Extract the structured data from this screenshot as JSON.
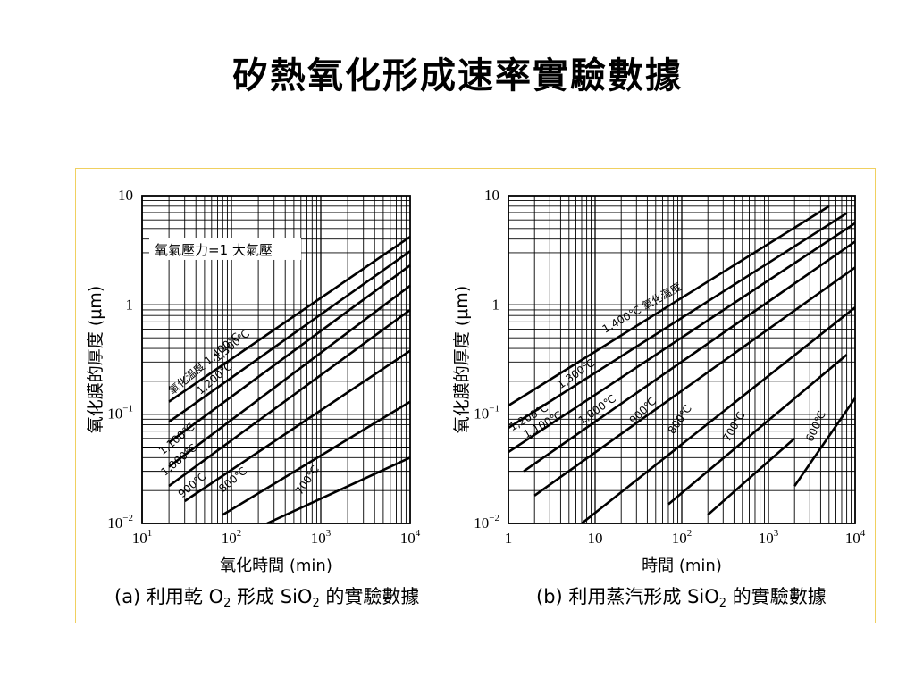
{
  "slide": {
    "title": "矽熱氧化形成速率實驗數據"
  },
  "colors": {
    "frame_border": "#f0d060",
    "ink": "#000000",
    "background": "#ffffff"
  },
  "chart_data": [
    {
      "id": "a",
      "type": "line",
      "title": "",
      "caption_prefix": "(a) 利用乾 O",
      "caption_sub": "2",
      "caption_mid": " 形成 SiO",
      "caption_sub2": "2",
      "caption_suffix": " 的實驗數據",
      "xlabel": "氧化時間 (min)",
      "ylabel": "氧化膜的厚度 (μm)",
      "x_scale": "log",
      "y_scale": "log",
      "xlim": [
        10,
        10000
      ],
      "ylim": [
        0.01,
        10
      ],
      "x_ticks": [
        {
          "v": 10,
          "base": "10",
          "exp": "1"
        },
        {
          "v": 100,
          "base": "10",
          "exp": "2"
        },
        {
          "v": 1000,
          "base": "10",
          "exp": "3"
        },
        {
          "v": 10000,
          "base": "10",
          "exp": "4"
        }
      ],
      "y_ticks": [
        {
          "v": 10,
          "label": "10",
          "exp": ""
        },
        {
          "v": 1,
          "label": "1",
          "exp": ""
        },
        {
          "v": 0.1,
          "label": "10",
          "exp": "−1"
        },
        {
          "v": 0.01,
          "label": "10",
          "exp": "−2"
        }
      ],
      "grid": true,
      "legend_box": "氧氣壓力=1 大氣壓",
      "series": [
        {
          "name": "1,400℃",
          "points": [
            [
              20,
              0.13
            ],
            [
              10000,
              4.2
            ]
          ]
        },
        {
          "name": "1,300℃",
          "points": [
            [
              20,
              0.085
            ],
            [
              10000,
              3.1
            ]
          ]
        },
        {
          "name": "1,200℃",
          "points": [
            [
              20,
              0.055
            ],
            [
              10000,
              2.3
            ]
          ]
        },
        {
          "name": "1,100℃",
          "points": [
            [
              20,
              0.033
            ],
            [
              10000,
              1.5
            ]
          ]
        },
        {
          "name": "1,000℃",
          "points": [
            [
              20,
              0.022
            ],
            [
              10000,
              0.9
            ]
          ]
        },
        {
          "name": "900℃",
          "points": [
            [
              30,
              0.016
            ],
            [
              10000,
              0.38
            ]
          ]
        },
        {
          "name": "800℃",
          "points": [
            [
              80,
              0.012
            ],
            [
              10000,
              0.13
            ]
          ]
        },
        {
          "name": "700℃",
          "points": [
            [
              250,
              0.01
            ],
            [
              10000,
              0.04
            ]
          ]
        }
      ],
      "annotations": [
        {
          "text": "氧化溫度 1,400℃",
          "at": [
            22,
            0.15
          ],
          "angle": -40
        },
        {
          "text": "1,300℃",
          "at": [
            70,
            0.3
          ],
          "angle": -40
        },
        {
          "text": "1,200℃",
          "at": [
            45,
            0.15
          ],
          "angle": -40
        },
        {
          "text": "1,100℃",
          "at": [
            17,
            0.042
          ],
          "angle": -40
        },
        {
          "text": "1,000℃",
          "at": [
            18,
            0.027
          ],
          "angle": -40
        },
        {
          "text": "900℃",
          "at": [
            28,
            0.017
          ],
          "angle": -40
        },
        {
          "text": "800℃",
          "at": [
            80,
            0.019
          ],
          "angle": -40
        },
        {
          "text": "700℃",
          "at": [
            600,
            0.018
          ],
          "angle": -55
        }
      ]
    },
    {
      "id": "b",
      "type": "line",
      "title": "",
      "caption_prefix": "(b) 利用蒸汽形成 SiO",
      "caption_sub": "2",
      "caption_mid": " 的實驗數據",
      "caption_sub2": "",
      "caption_suffix": "",
      "xlabel": "時間 (min)",
      "ylabel": "氧化膜的厚度 (μm)",
      "x_scale": "log",
      "y_scale": "log",
      "xlim": [
        1,
        10000
      ],
      "ylim": [
        0.01,
        10
      ],
      "x_ticks": [
        {
          "v": 1,
          "base": "1",
          "exp": ""
        },
        {
          "v": 10,
          "base": "10",
          "exp": ""
        },
        {
          "v": 100,
          "base": "10",
          "exp": "2"
        },
        {
          "v": 1000,
          "base": "10",
          "exp": "3"
        },
        {
          "v": 10000,
          "base": "10",
          "exp": "4"
        }
      ],
      "y_ticks": [
        {
          "v": 10,
          "label": "10",
          "exp": ""
        },
        {
          "v": 1,
          "label": "1",
          "exp": ""
        },
        {
          "v": 0.1,
          "label": "10",
          "exp": "−1"
        },
        {
          "v": 0.01,
          "label": "10",
          "exp": "−2"
        }
      ],
      "grid": true,
      "legend_box": "",
      "series": [
        {
          "name": "1,400℃",
          "points": [
            [
              1,
              0.12
            ],
            [
              5000,
              8.0
            ]
          ]
        },
        {
          "name": "1,300℃",
          "points": [
            [
              1,
              0.075
            ],
            [
              8000,
              6.9
            ]
          ]
        },
        {
          "name": "1,200℃",
          "points": [
            [
              1,
              0.045
            ],
            [
              10000,
              5.6
            ]
          ]
        },
        {
          "name": "1,100℃",
          "points": [
            [
              1.5,
              0.03
            ],
            [
              10000,
              3.8
            ]
          ]
        },
        {
          "name": "1,000℃",
          "points": [
            [
              2,
              0.018
            ],
            [
              10000,
              2.2
            ]
          ]
        },
        {
          "name": "900℃",
          "points": [
            [
              7,
              0.01
            ],
            [
              10000,
              0.95
            ]
          ]
        },
        {
          "name": "800℃",
          "points": [
            [
              70,
              0.015
            ],
            [
              8000,
              0.35
            ]
          ]
        },
        {
          "name": "700℃",
          "points": [
            [
              200,
              0.012
            ],
            [
              2000,
              0.06
            ]
          ]
        },
        {
          "name": "600℃",
          "points": [
            [
              2000,
              0.022
            ],
            [
              10000,
              0.14
            ]
          ]
        }
      ],
      "annotations": [
        {
          "text": "1,400℃ 氧化溫度",
          "at": [
            13,
            0.55
          ],
          "angle": -30
        },
        {
          "text": "1,300℃",
          "at": [
            4,
            0.17
          ],
          "angle": -35
        },
        {
          "text": "1,200℃",
          "at": [
            1.1,
            0.07
          ],
          "angle": -30
        },
        {
          "text": "1,100℃",
          "at": [
            1.6,
            0.06
          ],
          "angle": -30
        },
        {
          "text": "1,000℃",
          "at": [
            7,
            0.08
          ],
          "angle": -35
        },
        {
          "text": "900℃",
          "at": [
            28,
            0.08
          ],
          "angle": -45
        },
        {
          "text": "800℃",
          "at": [
            80,
            0.065
          ],
          "angle": -55
        },
        {
          "text": "700℃",
          "at": [
            350,
            0.055
          ],
          "angle": -60
        },
        {
          "text": "600℃",
          "at": [
            3200,
            0.055
          ],
          "angle": -65
        }
      ]
    }
  ]
}
